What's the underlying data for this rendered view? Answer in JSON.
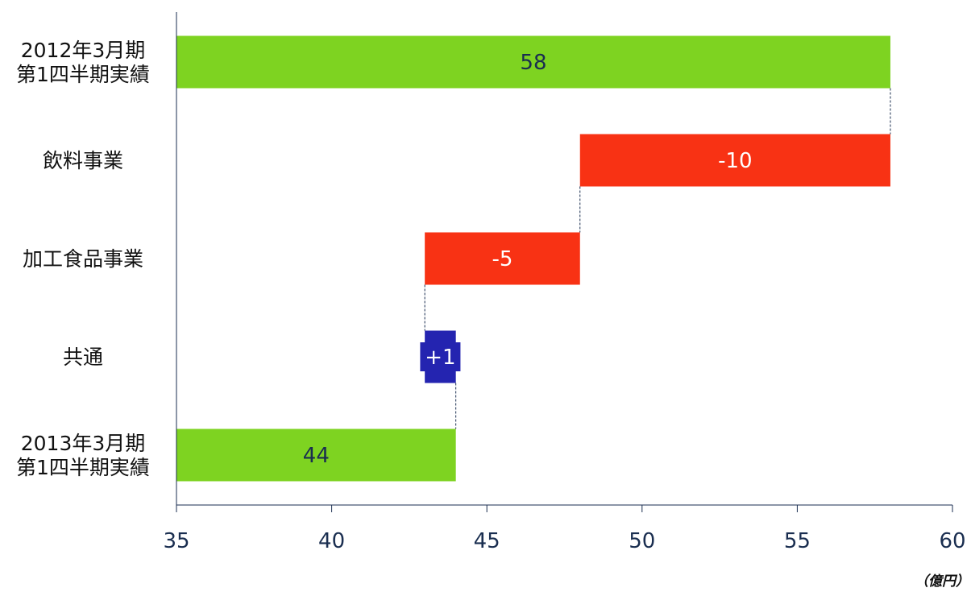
{
  "chart_data": {
    "type": "bar",
    "orientation": "horizontal",
    "variant": "waterfall",
    "categories": [
      [
        "2012年3月期",
        "第1四半期実績"
      ],
      [
        "飲料事業"
      ],
      [
        "加工食品事業"
      ],
      [
        "共通"
      ],
      [
        "2013年3月期",
        "第1四半期実績"
      ]
    ],
    "bars": [
      {
        "start": 35,
        "end": 58,
        "label": "58",
        "kind": "total"
      },
      {
        "start": 48,
        "end": 58,
        "label": "-10",
        "kind": "decrease"
      },
      {
        "start": 43,
        "end": 48,
        "label": "-5",
        "kind": "decrease"
      },
      {
        "start": 43,
        "end": 44,
        "label": "+1",
        "kind": "increase"
      },
      {
        "start": 35,
        "end": 44,
        "label": "44",
        "kind": "total"
      }
    ],
    "xlim": [
      35,
      60
    ],
    "xticks": [
      35,
      40,
      45,
      50,
      55,
      60
    ],
    "unit": "（億円）",
    "grid": false,
    "legend": "none",
    "colors": {
      "total": "#7ed321",
      "decrease": "#f83214",
      "increase": "#2424b0",
      "total_text": "#1a2e50",
      "change_text": "#ffffff",
      "axis": "#1a2e50"
    }
  }
}
